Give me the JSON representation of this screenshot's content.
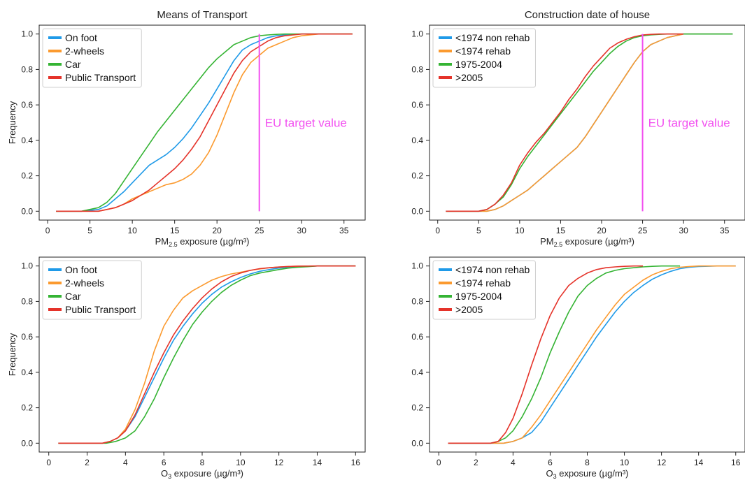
{
  "colors": {
    "blue": "#1f9ae8",
    "orange": "#fb9a2f",
    "green": "#35b434",
    "red": "#e5332a",
    "magenta": "#f24ff0"
  },
  "chart_data": [
    {
      "type": "line",
      "title": "Means of Transport",
      "xlabel_main": "PM",
      "xlabel_sub": "2.5",
      "xlabel_tail": " exposure (µg/m³)",
      "ylabel": "Frequency",
      "xlim": [
        -1.0,
        37.5
      ],
      "ylim": [
        -0.05,
        1.05
      ],
      "xticks": [
        "0",
        "5",
        "10",
        "15",
        "20",
        "25",
        "30",
        "35"
      ],
      "yticks": [
        "0.0",
        "0.2",
        "0.4",
        "0.6",
        "0.8",
        "1.0"
      ],
      "legend_position": "top-left",
      "annotation": {
        "text": "EU target value",
        "x": 25
      },
      "series": [
        {
          "name": "On foot",
          "color": "#1f9ae8",
          "x": [
            1,
            4,
            6,
            7,
            8,
            9,
            10,
            11,
            12,
            13,
            14,
            15,
            16,
            17,
            18,
            19,
            20,
            21,
            22,
            23,
            24,
            25,
            26,
            27,
            28,
            29,
            30,
            32,
            34,
            36
          ],
          "y": [
            0,
            0,
            0.01,
            0.03,
            0.07,
            0.11,
            0.16,
            0.21,
            0.26,
            0.29,
            0.32,
            0.36,
            0.41,
            0.47,
            0.54,
            0.61,
            0.69,
            0.77,
            0.85,
            0.91,
            0.94,
            0.96,
            0.98,
            0.99,
            0.995,
            0.998,
            1,
            1,
            1,
            1
          ]
        },
        {
          "name": "2-wheels",
          "color": "#fb9a2f",
          "x": [
            1,
            4,
            6,
            7,
            8,
            9,
            10,
            11,
            12,
            13,
            14,
            15,
            16,
            17,
            18,
            19,
            20,
            21,
            22,
            23,
            24,
            25,
            26,
            27,
            28,
            29,
            30,
            32,
            34,
            36
          ],
          "y": [
            0,
            0,
            0,
            0.01,
            0.02,
            0.04,
            0.07,
            0.09,
            0.11,
            0.13,
            0.15,
            0.16,
            0.18,
            0.21,
            0.26,
            0.33,
            0.43,
            0.55,
            0.67,
            0.77,
            0.84,
            0.88,
            0.92,
            0.94,
            0.96,
            0.98,
            0.99,
            1,
            1,
            1
          ]
        },
        {
          "name": "Car",
          "color": "#35b434",
          "x": [
            1,
            4,
            6,
            7,
            8,
            9,
            10,
            11,
            12,
            13,
            14,
            15,
            16,
            17,
            18,
            19,
            20,
            21,
            22,
            23,
            24,
            25,
            26,
            27,
            28,
            30,
            32,
            34,
            36
          ],
          "y": [
            0,
            0,
            0.02,
            0.05,
            0.1,
            0.17,
            0.24,
            0.31,
            0.38,
            0.45,
            0.51,
            0.57,
            0.63,
            0.69,
            0.75,
            0.81,
            0.86,
            0.9,
            0.94,
            0.96,
            0.98,
            0.99,
            0.995,
            0.998,
            1,
            1,
            1,
            1,
            1
          ]
        },
        {
          "name": "Public Transport",
          "color": "#e5332a",
          "x": [
            1,
            4,
            6,
            7,
            8,
            9,
            10,
            11,
            12,
            13,
            14,
            15,
            16,
            17,
            18,
            19,
            20,
            21,
            22,
            23,
            24,
            25,
            26,
            27,
            28,
            29,
            30,
            32,
            34,
            36
          ],
          "y": [
            0,
            0,
            0,
            0.01,
            0.02,
            0.04,
            0.06,
            0.09,
            0.12,
            0.16,
            0.2,
            0.24,
            0.29,
            0.35,
            0.42,
            0.51,
            0.6,
            0.69,
            0.78,
            0.85,
            0.9,
            0.93,
            0.96,
            0.98,
            0.99,
            0.995,
            1,
            1,
            1,
            1
          ]
        }
      ]
    },
    {
      "type": "line",
      "title": "Construction date of house",
      "xlabel_main": "PM",
      "xlabel_sub": "2.5",
      "xlabel_tail": " exposure (µg/m³)",
      "ylabel": "",
      "xlim": [
        -1.0,
        37.5
      ],
      "ylim": [
        -0.05,
        1.05
      ],
      "xticks": [
        "0",
        "5",
        "10",
        "15",
        "20",
        "25",
        "30",
        "35"
      ],
      "yticks": [
        "0.0",
        "0.2",
        "0.4",
        "0.6",
        "0.8",
        "1.0"
      ],
      "legend_position": "top-left",
      "annotation": {
        "text": "EU target value",
        "x": 25
      },
      "series": [
        {
          "name": "<1974 non rehab",
          "color": "#1f9ae8",
          "x": [
            1,
            4,
            5,
            6,
            7,
            8,
            9,
            10,
            11,
            12,
            13,
            14,
            15,
            16,
            17,
            18,
            19,
            20,
            21,
            22,
            23,
            24,
            25,
            26,
            27,
            28,
            29,
            30,
            32,
            34,
            36
          ],
          "y": [
            0,
            0,
            0,
            0,
            0.01,
            0.03,
            0.06,
            0.09,
            0.12,
            0.16,
            0.2,
            0.24,
            0.28,
            0.32,
            0.36,
            0.42,
            0.49,
            0.56,
            0.63,
            0.7,
            0.77,
            0.84,
            0.9,
            0.94,
            0.96,
            0.98,
            0.99,
            1,
            1,
            1,
            1
          ]
        },
        {
          "name": "<1974 rehab",
          "color": "#fb9a2f",
          "x": [
            1,
            4,
            5,
            6,
            7,
            8,
            9,
            10,
            11,
            12,
            13,
            14,
            15,
            16,
            17,
            18,
            19,
            20,
            21,
            22,
            23,
            24,
            25,
            26,
            27,
            28,
            29,
            30,
            32,
            34,
            36
          ],
          "y": [
            0,
            0,
            0,
            0,
            0.01,
            0.03,
            0.06,
            0.09,
            0.12,
            0.16,
            0.2,
            0.24,
            0.28,
            0.32,
            0.36,
            0.42,
            0.49,
            0.56,
            0.63,
            0.7,
            0.77,
            0.84,
            0.9,
            0.94,
            0.96,
            0.98,
            0.99,
            1,
            1,
            1,
            1
          ]
        },
        {
          "name": "1975-2004",
          "color": "#35b434",
          "x": [
            1,
            4,
            5,
            6,
            7,
            8,
            9,
            10,
            11,
            12,
            13,
            14,
            15,
            16,
            17,
            18,
            19,
            20,
            21,
            22,
            23,
            24,
            25,
            26,
            27,
            28,
            30,
            32,
            34,
            36
          ],
          "y": [
            0,
            0,
            0,
            0.01,
            0.04,
            0.08,
            0.15,
            0.24,
            0.31,
            0.37,
            0.43,
            0.49,
            0.55,
            0.61,
            0.67,
            0.73,
            0.79,
            0.84,
            0.89,
            0.93,
            0.96,
            0.98,
            0.99,
            0.995,
            0.998,
            1,
            1,
            1,
            1,
            1
          ]
        },
        {
          "name": ">2005",
          "color": "#e5332a",
          "x": [
            1,
            4,
            5,
            6,
            7,
            8,
            9,
            10,
            11,
            12,
            13,
            14,
            15,
            16,
            17,
            18,
            19,
            20,
            21,
            22,
            23,
            24,
            25,
            26,
            27,
            28,
            30
          ],
          "y": [
            0,
            0,
            0,
            0.01,
            0.04,
            0.09,
            0.16,
            0.26,
            0.33,
            0.39,
            0.44,
            0.5,
            0.56,
            0.63,
            0.69,
            0.76,
            0.82,
            0.87,
            0.92,
            0.95,
            0.97,
            0.985,
            0.995,
            0.998,
            1,
            1,
            1
          ]
        }
      ]
    },
    {
      "type": "line",
      "title": "",
      "xlabel_main": "O",
      "xlabel_sub": "3",
      "xlabel_tail": " exposure (µg/m³)",
      "ylabel": "Frequency",
      "xlim": [
        -0.5,
        16.5
      ],
      "ylim": [
        -0.05,
        1.05
      ],
      "xticks": [
        "0",
        "2",
        "4",
        "6",
        "8",
        "10",
        "12",
        "14",
        "16"
      ],
      "yticks": [
        "0.0",
        "0.2",
        "0.4",
        "0.6",
        "0.8",
        "1.0"
      ],
      "legend_position": "top-left",
      "series": [
        {
          "name": "On foot",
          "color": "#1f9ae8",
          "x": [
            0.5,
            2,
            2.8,
            3.2,
            3.6,
            4,
            4.5,
            5,
            5.5,
            6,
            6.5,
            7,
            7.5,
            8,
            8.5,
            9,
            9.5,
            10,
            10.5,
            11,
            11.5,
            12,
            12.5,
            13,
            13.5,
            14,
            15,
            16
          ],
          "y": [
            0,
            0,
            0,
            0.01,
            0.03,
            0.07,
            0.15,
            0.26,
            0.37,
            0.48,
            0.58,
            0.66,
            0.73,
            0.79,
            0.84,
            0.88,
            0.91,
            0.935,
            0.955,
            0.97,
            0.98,
            0.988,
            0.993,
            0.996,
            0.998,
            1,
            1,
            1
          ]
        },
        {
          "name": "2-wheels",
          "color": "#fb9a2f",
          "x": [
            0.5,
            2,
            2.8,
            3.2,
            3.6,
            4,
            4.5,
            5,
            5.5,
            6,
            6.5,
            7,
            7.5,
            8,
            8.5,
            9,
            9.5,
            10,
            10.5,
            11,
            11.5,
            12,
            12.5,
            13,
            14,
            15,
            16
          ],
          "y": [
            0,
            0,
            0,
            0.01,
            0.03,
            0.08,
            0.19,
            0.34,
            0.52,
            0.66,
            0.75,
            0.82,
            0.86,
            0.89,
            0.92,
            0.94,
            0.955,
            0.965,
            0.975,
            0.983,
            0.99,
            0.994,
            0.997,
            0.999,
            1,
            1,
            1
          ]
        },
        {
          "name": "Car",
          "color": "#35b434",
          "x": [
            0.5,
            2,
            3,
            3.5,
            4,
            4.5,
            5,
            5.5,
            6,
            6.5,
            7,
            7.5,
            8,
            8.5,
            9,
            9.5,
            10,
            10.5,
            11,
            11.5,
            12,
            12.5,
            13,
            13.5,
            14,
            15,
            16
          ],
          "y": [
            0,
            0,
            0,
            0.01,
            0.03,
            0.07,
            0.15,
            0.25,
            0.37,
            0.48,
            0.58,
            0.67,
            0.74,
            0.8,
            0.85,
            0.89,
            0.92,
            0.945,
            0.96,
            0.97,
            0.98,
            0.988,
            0.993,
            0.996,
            1,
            1,
            1
          ]
        },
        {
          "name": "Public Transport",
          "color": "#e5332a",
          "x": [
            0.5,
            2,
            2.8,
            3.2,
            3.6,
            4,
            4.5,
            5,
            5.5,
            6,
            6.5,
            7,
            7.5,
            8,
            8.5,
            9,
            9.5,
            10,
            10.5,
            11,
            11.5,
            12,
            12.5,
            13,
            14,
            15,
            16
          ],
          "y": [
            0,
            0,
            0,
            0.01,
            0.03,
            0.07,
            0.16,
            0.28,
            0.4,
            0.51,
            0.61,
            0.69,
            0.76,
            0.82,
            0.87,
            0.91,
            0.94,
            0.96,
            0.975,
            0.985,
            0.99,
            0.994,
            0.997,
            0.999,
            1,
            1,
            1
          ]
        }
      ]
    },
    {
      "type": "line",
      "title": "",
      "xlabel_main": "O",
      "xlabel_sub": "3",
      "xlabel_tail": " exposure (µg/m³)",
      "ylabel": "",
      "xlim": [
        -0.5,
        16.5
      ],
      "ylim": [
        -0.05,
        1.05
      ],
      "xticks": [
        "0",
        "2",
        "4",
        "6",
        "8",
        "10",
        "12",
        "14",
        "16"
      ],
      "yticks": [
        "0.0",
        "0.2",
        "0.4",
        "0.6",
        "0.8",
        "1.0"
      ],
      "legend_position": "top-left",
      "series": [
        {
          "name": "<1974 non rehab",
          "color": "#1f9ae8",
          "x": [
            0.5,
            2,
            3,
            3.5,
            4,
            4.5,
            5,
            5.5,
            6,
            6.5,
            7,
            7.5,
            8,
            8.5,
            9,
            9.5,
            10,
            10.5,
            11,
            11.5,
            12,
            12.5,
            13,
            13.5,
            14,
            15,
            16
          ],
          "y": [
            0,
            0,
            0,
            0,
            0.01,
            0.03,
            0.06,
            0.12,
            0.2,
            0.28,
            0.36,
            0.44,
            0.52,
            0.6,
            0.67,
            0.74,
            0.8,
            0.85,
            0.89,
            0.925,
            0.95,
            0.97,
            0.985,
            0.993,
            0.997,
            1,
            1
          ]
        },
        {
          "name": "<1974 rehab",
          "color": "#fb9a2f",
          "x": [
            0.5,
            2,
            3,
            3.5,
            4,
            4.5,
            5,
            5.5,
            6,
            6.5,
            7,
            7.5,
            8,
            8.5,
            9,
            9.5,
            10,
            10.5,
            11,
            11.5,
            12,
            12.5,
            13,
            13.5,
            14,
            15,
            16
          ],
          "y": [
            0,
            0,
            0,
            0,
            0.01,
            0.03,
            0.09,
            0.16,
            0.24,
            0.32,
            0.4,
            0.48,
            0.56,
            0.64,
            0.71,
            0.78,
            0.84,
            0.88,
            0.92,
            0.95,
            0.97,
            0.985,
            0.993,
            0.997,
            1,
            1,
            1
          ]
        },
        {
          "name": "1975-2004",
          "color": "#35b434",
          "x": [
            0.5,
            2,
            2.8,
            3.2,
            3.6,
            4,
            4.5,
            5,
            5.5,
            6,
            6.5,
            7,
            7.5,
            8,
            8.5,
            9,
            9.5,
            10,
            10.5,
            11,
            11.5,
            12,
            12.5,
            13
          ],
          "y": [
            0,
            0,
            0,
            0.01,
            0.03,
            0.07,
            0.15,
            0.25,
            0.37,
            0.51,
            0.63,
            0.74,
            0.83,
            0.89,
            0.93,
            0.96,
            0.975,
            0.985,
            0.99,
            0.995,
            0.998,
            1,
            1,
            1
          ]
        },
        {
          "name": ">2005",
          "color": "#e5332a",
          "x": [
            0.5,
            2,
            2.8,
            3.2,
            3.6,
            4,
            4.5,
            5,
            5.5,
            6,
            6.5,
            7,
            7.5,
            8,
            8.5,
            9,
            9.5,
            10,
            10.5,
            11
          ],
          "y": [
            0,
            0,
            0,
            0.01,
            0.06,
            0.14,
            0.28,
            0.44,
            0.59,
            0.72,
            0.82,
            0.89,
            0.93,
            0.96,
            0.98,
            0.99,
            0.995,
            0.998,
            1,
            1
          ]
        }
      ]
    }
  ]
}
